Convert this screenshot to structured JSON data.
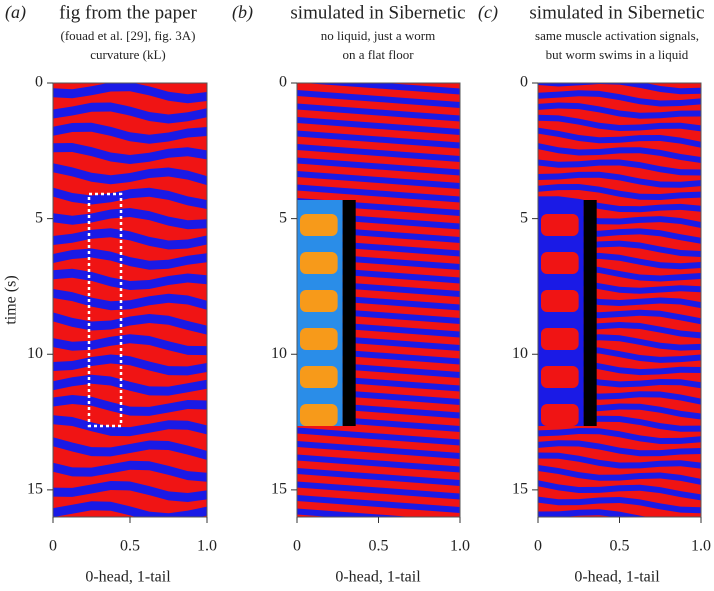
{
  "chart_data": [
    {
      "type": "heatmap",
      "panel_label": "(a)",
      "title": "fig from the paper",
      "subtitle": [
        "(fouad et al. [29], fig. 3A)",
        "curvature (kL)"
      ],
      "xlabel": "0-head, 1-tail",
      "ylabel": "time (s)",
      "xlim": [
        0,
        1
      ],
      "ylim": [
        0,
        16
      ],
      "xticks": [
        0,
        0.5,
        {
          "value": 1,
          "label": "1.0"
        }
      ],
      "yticks": [
        0,
        5,
        10,
        15
      ]
    },
    {
      "type": "heatmap",
      "panel_label": "(b)",
      "title": "simulated in Sibernetic",
      "subtitle": [
        "no liquid, just a worm",
        "on a flat floor"
      ],
      "xlabel": "0-head, 1-tail",
      "xlim": [
        0,
        1
      ],
      "ylim": [
        0,
        16
      ],
      "xticks": [
        0,
        0.5,
        {
          "value": 1,
          "label": "1.0"
        }
      ],
      "yticks": [
        0,
        5,
        10,
        15
      ]
    },
    {
      "type": "heatmap",
      "panel_label": "(c)",
      "title": "simulated in Sibernetic",
      "subtitle": [
        "same muscle activation signals,",
        "but worm swims in a liquid"
      ],
      "xlabel": "0-head, 1-tail",
      "xlim": [
        0,
        1
      ],
      "ylim": [
        0,
        16
      ],
      "xticks": [
        0,
        0.5,
        {
          "value": 1,
          "label": "1.0"
        }
      ],
      "yticks": [
        0,
        5,
        10,
        15
      ]
    }
  ]
}
